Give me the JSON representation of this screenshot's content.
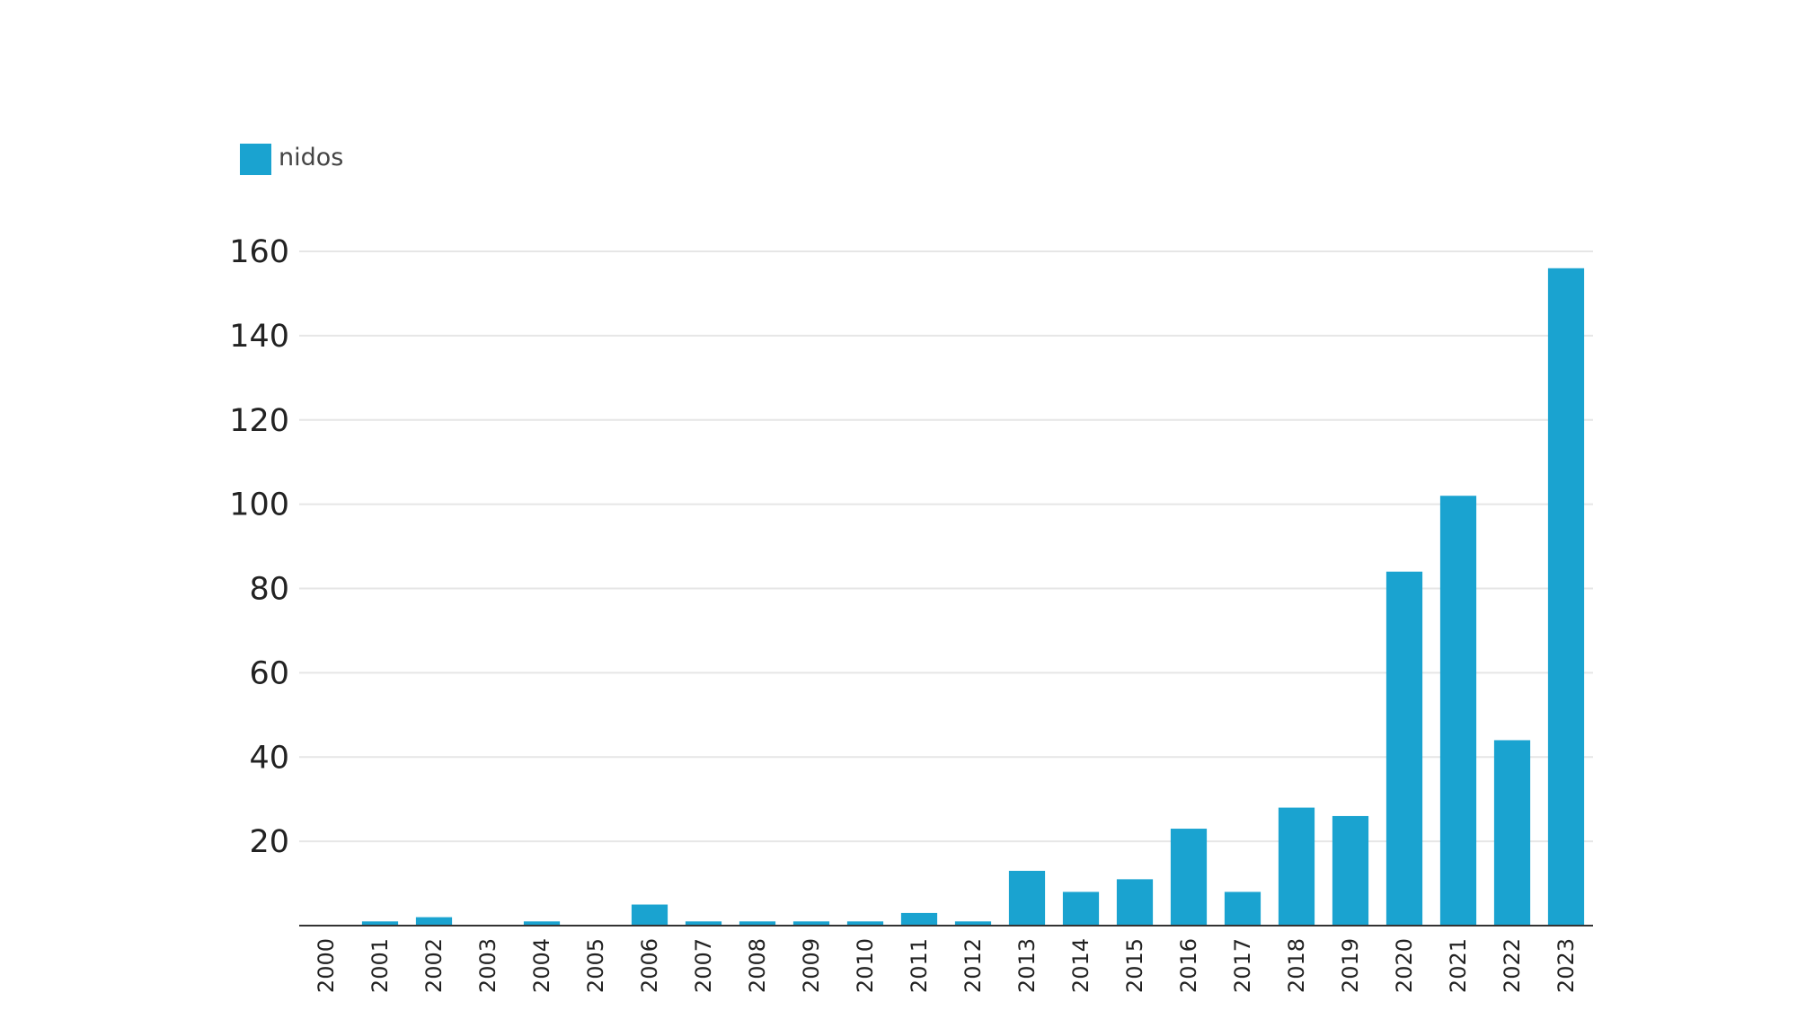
{
  "chart_data": {
    "type": "bar",
    "categories": [
      "2000",
      "2001",
      "2002",
      "2003",
      "2004",
      "2005",
      "2006",
      "2007",
      "2008",
      "2009",
      "2010",
      "2011",
      "2012",
      "2013",
      "2014",
      "2015",
      "2016",
      "2017",
      "2018",
      "2019",
      "2020",
      "2021",
      "2022",
      "2023"
    ],
    "series": [
      {
        "name": "nidos",
        "values": [
          0,
          1,
          2,
          0,
          1,
          0,
          5,
          1,
          1,
          1,
          1,
          3,
          1,
          13,
          8,
          11,
          23,
          8,
          28,
          26,
          84,
          102,
          44,
          156
        ]
      }
    ],
    "yticks": [
      20,
      40,
      60,
      80,
      100,
      120,
      140,
      160
    ],
    "ylim": [
      0,
      160
    ],
    "title": "",
    "xlabel": "",
    "ylabel": "",
    "grid": true,
    "legend_position": "top-left",
    "bar_color": "#1aa3d0",
    "grid_color": "#e6e6e6",
    "axis_color": "#333333"
  }
}
